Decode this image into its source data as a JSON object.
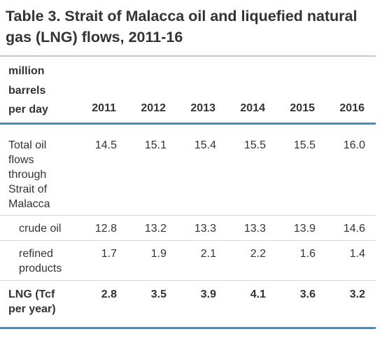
{
  "table": {
    "title": "Table 3. Strait of Malacca oil and liquefied natural gas (LNG) flows, 2011-16",
    "unit_header": [
      "million",
      "barrels",
      "per day"
    ],
    "years": [
      "2011",
      "2012",
      "2013",
      "2014",
      "2015",
      "2016"
    ],
    "rows": [
      {
        "label": [
          "Total oil",
          "flows",
          "through",
          "Strait of",
          "Malacca"
        ],
        "values": [
          "14.5",
          "15.1",
          "15.4",
          "15.5",
          "15.5",
          "16.0"
        ]
      },
      {
        "label": [
          "crude oil"
        ],
        "values": [
          "12.8",
          "13.2",
          "13.3",
          "13.3",
          "13.9",
          "14.6"
        ]
      },
      {
        "label": [
          "refined",
          "products"
        ],
        "values": [
          "1.7",
          "1.9",
          "2.1",
          "2.2",
          "1.6",
          "1.4"
        ]
      },
      {
        "label": [
          "LNG (Tcf",
          "per year)"
        ],
        "values": [
          "2.8",
          "3.5",
          "3.9",
          "4.1",
          "3.6",
          "3.2"
        ]
      }
    ]
  }
}
